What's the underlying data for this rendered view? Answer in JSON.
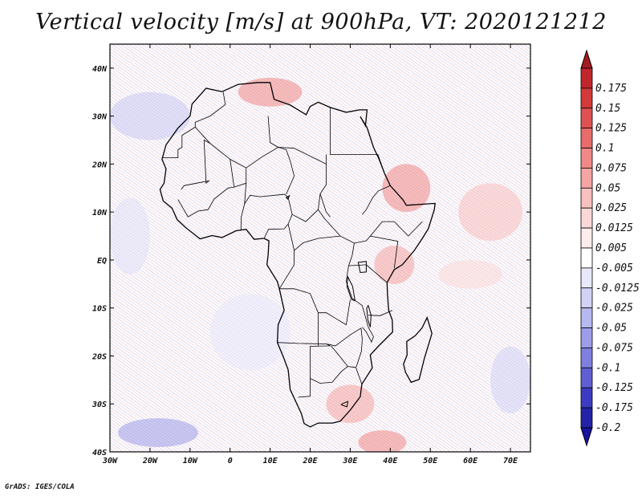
{
  "title": "Vertical velocity [m/s] at 900hPa, VT: 2020121212",
  "credit": "GrADS: IGES/COLA",
  "map": {
    "lon_range": [
      -30,
      75
    ],
    "lat_range": [
      -40,
      45
    ],
    "lon_ticks": [
      {
        "lon": -30,
        "label": "30W"
      },
      {
        "lon": -20,
        "label": "20W"
      },
      {
        "lon": -10,
        "label": "10W"
      },
      {
        "lon": 0,
        "label": "0"
      },
      {
        "lon": 10,
        "label": "10E"
      },
      {
        "lon": 20,
        "label": "20E"
      },
      {
        "lon": 30,
        "label": "30E"
      },
      {
        "lon": 40,
        "label": "40E"
      },
      {
        "lon": 50,
        "label": "50E"
      },
      {
        "lon": 60,
        "label": "60E"
      },
      {
        "lon": 70,
        "label": "70E"
      }
    ],
    "lat_ticks": [
      {
        "lat": 40,
        "label": "40N"
      },
      {
        "lat": 30,
        "label": "30N"
      },
      {
        "lat": 20,
        "label": "20N"
      },
      {
        "lat": 10,
        "label": "10N"
      },
      {
        "lat": 0,
        "label": "EQ"
      },
      {
        "lat": -10,
        "label": "10S"
      },
      {
        "lat": -20,
        "label": "20S"
      },
      {
        "lat": -30,
        "label": "30S"
      },
      {
        "lat": -40,
        "label": "40S"
      }
    ]
  },
  "colorbar": {
    "levels": [
      {
        "label": "0.175",
        "color": "#c0262b"
      },
      {
        "label": "0.15",
        "color": "#d43a3a"
      },
      {
        "label": "0.125",
        "color": "#e05252"
      },
      {
        "label": "0.1",
        "color": "#e86c6a"
      },
      {
        "label": "0.075",
        "color": "#ef8886"
      },
      {
        "label": "0.05",
        "color": "#f4a4a2"
      },
      {
        "label": "0.025",
        "color": "#f8c0be"
      },
      {
        "label": "0.0125",
        "color": "#fbd8d7"
      },
      {
        "label": "0.005",
        "color": "#fdeceb"
      },
      {
        "label": "-0.005",
        "color": "#ffffff"
      },
      {
        "label": "-0.0125",
        "color": "#e8e8fb"
      },
      {
        "label": "-0.025",
        "color": "#d2d2f6"
      },
      {
        "label": "-0.05",
        "color": "#b8b8f0"
      },
      {
        "label": "-0.075",
        "color": "#9c9ce8"
      },
      {
        "label": "-0.1",
        "color": "#7f7fdf"
      },
      {
        "label": "-0.125",
        "color": "#5f5fd3"
      },
      {
        "label": "-0.175",
        "color": "#3c3cc2"
      },
      {
        "label": "-0.2",
        "color": "#2323a8"
      }
    ],
    "top_arrow_color": "#a51a22",
    "bottom_arrow_color": "#1a14a0"
  },
  "coastline": [
    [
      -17,
      21
    ],
    [
      -16,
      24
    ],
    [
      -13,
      27.5
    ],
    [
      -10,
      30
    ],
    [
      -9.5,
      32.5
    ],
    [
      -6,
      35.8
    ],
    [
      -2,
      35.1
    ],
    [
      2,
      36.6
    ],
    [
      7,
      37
    ],
    [
      10,
      37
    ],
    [
      11,
      33.5
    ],
    [
      15,
      32.3
    ],
    [
      19,
      30.3
    ],
    [
      20,
      32
    ],
    [
      22,
      32.9
    ],
    [
      25,
      31.8
    ],
    [
      29,
      30.8
    ],
    [
      32.3,
      31.3
    ],
    [
      34.2,
      31.3
    ],
    [
      33.8,
      28
    ],
    [
      32.5,
      29.9
    ],
    [
      34.2,
      27.6
    ],
    [
      35.8,
      23.5
    ],
    [
      37.2,
      21
    ],
    [
      38.6,
      18
    ],
    [
      40,
      15.5
    ],
    [
      43.2,
      12.5
    ],
    [
      44,
      11.4
    ],
    [
      51.2,
      11.8
    ],
    [
      51,
      10.5
    ],
    [
      49.5,
      6.5
    ],
    [
      48,
      4.5
    ],
    [
      46,
      2
    ],
    [
      43,
      -1
    ],
    [
      41,
      -2
    ],
    [
      39.2,
      -4.7
    ],
    [
      39.3,
      -7
    ],
    [
      39.6,
      -10.5
    ],
    [
      40.5,
      -12.5
    ],
    [
      40.6,
      -15
    ],
    [
      37,
      -18
    ],
    [
      35,
      -19.8
    ],
    [
      35.5,
      -22.5
    ],
    [
      32.9,
      -25.9
    ],
    [
      32.5,
      -28.5
    ],
    [
      30,
      -31.3
    ],
    [
      27.5,
      -33.6
    ],
    [
      25.6,
      -34
    ],
    [
      22,
      -34
    ],
    [
      20,
      -34.8
    ],
    [
      18.5,
      -34.1
    ],
    [
      17.8,
      -32
    ],
    [
      15,
      -27
    ],
    [
      14.5,
      -22.9
    ],
    [
      13.2,
      -20
    ],
    [
      11.8,
      -17.2
    ],
    [
      12,
      -13.5
    ],
    [
      13.5,
      -10.5
    ],
    [
      12.3,
      -6
    ],
    [
      11.8,
      -4.5
    ],
    [
      9.2,
      -1
    ],
    [
      9.5,
      1
    ],
    [
      9.7,
      4
    ],
    [
      8.5,
      4.5
    ],
    [
      6,
      4.3
    ],
    [
      4,
      6.4
    ],
    [
      1.5,
      6.1
    ],
    [
      -2,
      4.7
    ],
    [
      -4.5,
      5.1
    ],
    [
      -7.5,
      4.4
    ],
    [
      -11,
      6.7
    ],
    [
      -13.2,
      8.4
    ],
    [
      -14.5,
      10.8
    ],
    [
      -16.7,
      12.3
    ],
    [
      -17.5,
      14.7
    ],
    [
      -16.5,
      16
    ],
    [
      -16,
      19
    ],
    [
      -17,
      21
    ]
  ],
  "madagascar": [
    [
      49.2,
      -12
    ],
    [
      50.4,
      -15.3
    ],
    [
      49.8,
      -17
    ],
    [
      48.5,
      -20.5
    ],
    [
      47.2,
      -24.9
    ],
    [
      45.2,
      -25.5
    ],
    [
      43.8,
      -23.4
    ],
    [
      43.3,
      -21.7
    ],
    [
      44.2,
      -19.8
    ],
    [
      44.1,
      -17
    ],
    [
      46.2,
      -15.8
    ],
    [
      47.9,
      -14.2
    ],
    [
      49.2,
      -12
    ]
  ],
  "borders": [
    [
      [
        -8.7,
        27.7
      ],
      [
        -5,
        24.3
      ],
      [
        0,
        21
      ],
      [
        4,
        19.2
      ]
    ],
    [
      [
        4,
        19.2
      ],
      [
        8,
        21.5
      ],
      [
        12,
        23.5
      ],
      [
        14,
        23
      ]
    ],
    [
      [
        9.5,
        30
      ],
      [
        10,
        24.5
      ],
      [
        12,
        23.5
      ]
    ],
    [
      [
        12,
        23.5
      ],
      [
        16,
        23.3
      ],
      [
        24,
        20
      ],
      [
        24,
        15.7
      ],
      [
        22.5,
        13.8
      ],
      [
        22,
        10.5
      ],
      [
        23.5,
        8.7
      ],
      [
        27.5,
        5
      ],
      [
        31,
        3.5
      ],
      [
        34,
        4
      ],
      [
        35,
        5
      ]
    ],
    [
      [
        25,
        31.8
      ],
      [
        25,
        22
      ],
      [
        36.9,
        22
      ]
    ],
    [
      [
        24,
        20
      ],
      [
        24,
        22
      ]
    ],
    [
      [
        -17,
        21.3
      ],
      [
        -13,
        21.3
      ],
      [
        -13,
        23
      ],
      [
        -12,
        23.5
      ],
      [
        -12,
        26
      ],
      [
        -8.7,
        27.7
      ],
      [
        -8.7,
        28.7
      ],
      [
        -5,
        30
      ],
      [
        -1.2,
        32.4
      ],
      [
        -1.7,
        35
      ]
    ],
    [
      [
        -5,
        24.3
      ],
      [
        -6.5,
        25
      ],
      [
        -6,
        16
      ],
      [
        -5.3,
        16.5
      ],
      [
        -11.5,
        15.5
      ],
      [
        -12.2,
        14.7
      ]
    ],
    [
      [
        0,
        21
      ],
      [
        1,
        15.2
      ],
      [
        -0.5,
        15
      ],
      [
        -4,
        12.7
      ],
      [
        -5.5,
        10.5
      ],
      [
        -8,
        10.2
      ],
      [
        -10.5,
        9
      ],
      [
        -13,
        12.6
      ]
    ],
    [
      [
        4,
        19.2
      ],
      [
        4,
        16
      ],
      [
        1,
        15.2
      ]
    ],
    [
      [
        4,
        16
      ],
      [
        3.6,
        11.7
      ],
      [
        2.8,
        9
      ],
      [
        2.7,
        6.3
      ]
    ],
    [
      [
        3.6,
        11.7
      ],
      [
        5,
        13.5
      ],
      [
        7.5,
        13.2
      ],
      [
        13.6,
        13.7
      ],
      [
        14.5,
        13
      ],
      [
        15.5,
        9.5
      ],
      [
        14.5,
        7.5
      ],
      [
        13.5,
        6.5
      ],
      [
        9.6,
        6.4
      ],
      [
        8.5,
        4.5
      ]
    ],
    [
      [
        14,
        23
      ],
      [
        15,
        20.7
      ],
      [
        16,
        17.5
      ],
      [
        14,
        13.7
      ]
    ],
    [
      [
        15.5,
        9.5
      ],
      [
        18.9,
        8
      ],
      [
        22,
        10.5
      ]
    ],
    [
      [
        14.5,
        7.5
      ],
      [
        16,
        2
      ],
      [
        18.3,
        3.6
      ],
      [
        22,
        4.5
      ],
      [
        27.5,
        5
      ]
    ],
    [
      [
        22.5,
        13.8
      ],
      [
        24,
        10
      ],
      [
        25,
        9
      ]
    ],
    [
      [
        36.9,
        22
      ],
      [
        38.6,
        18
      ]
    ],
    [
      [
        33,
        9.5
      ],
      [
        34,
        10.5
      ],
      [
        35.6,
        13
      ],
      [
        37,
        14.4
      ],
      [
        40,
        15.5
      ]
    ],
    [
      [
        35,
        5
      ],
      [
        41.9,
        3.9
      ],
      [
        41,
        -1.7
      ]
    ],
    [
      [
        35,
        5
      ],
      [
        38,
        8
      ],
      [
        41,
        8
      ],
      [
        44.5,
        5
      ],
      [
        48,
        8
      ]
    ],
    [
      [
        31,
        3.5
      ],
      [
        30.5,
        1
      ],
      [
        29.6,
        -1.2
      ],
      [
        29,
        -4.5
      ],
      [
        30.5,
        -8
      ],
      [
        33,
        -9.5
      ],
      [
        34.5,
        -14
      ]
    ],
    [
      [
        34,
        -1
      ],
      [
        37.5,
        -3.5
      ],
      [
        39.2,
        -4.7
      ]
    ],
    [
      [
        29.6,
        -1.2
      ],
      [
        34,
        -1
      ]
    ],
    [
      [
        16,
        2
      ],
      [
        16,
        -1
      ],
      [
        12.3,
        -6
      ]
    ],
    [
      [
        12.3,
        -6
      ],
      [
        16,
        -6
      ],
      [
        20,
        -7
      ],
      [
        22,
        -11
      ],
      [
        24,
        -11
      ],
      [
        26,
        -12
      ],
      [
        29,
        -13.5
      ],
      [
        30,
        -8.3
      ]
    ],
    [
      [
        11.8,
        -17.2
      ],
      [
        17,
        -17.4
      ],
      [
        24,
        -17.5
      ],
      [
        25,
        -17.9
      ],
      [
        20,
        -18
      ],
      [
        20,
        -22
      ],
      [
        20,
        -24.7
      ],
      [
        20,
        -28.4
      ],
      [
        17,
        -28.6
      ]
    ],
    [
      [
        22,
        -11
      ],
      [
        22,
        -18
      ]
    ],
    [
      [
        24,
        -17.5
      ],
      [
        26.3,
        -17.9
      ],
      [
        30,
        -15.6
      ],
      [
        32.7,
        -14.2
      ]
    ],
    [
      [
        25.2,
        -17.9
      ],
      [
        26.8,
        -19.5
      ],
      [
        29.4,
        -22.2
      ],
      [
        31.4,
        -22.4
      ],
      [
        32.9,
        -25.9
      ]
    ],
    [
      [
        32.7,
        -14.2
      ],
      [
        33,
        -16.5
      ],
      [
        32.8,
        -19
      ],
      [
        31.5,
        -22.3
      ]
    ],
    [
      [
        20,
        -24.7
      ],
      [
        22.5,
        -25.7
      ],
      [
        25.5,
        -25.5
      ],
      [
        27.7,
        -23.3
      ],
      [
        29.4,
        -22.2
      ]
    ],
    [
      [
        34.5,
        -14
      ],
      [
        35.8,
        -16
      ],
      [
        35.3,
        -17.1
      ],
      [
        34,
        -15
      ],
      [
        33,
        -14
      ]
    ],
    [
      [
        40.5,
        -10.5
      ],
      [
        37.5,
        -11.6
      ],
      [
        34.5,
        -11.5
      ]
    ]
  ],
  "lakes": [
    [
      [
        32,
        -0.5
      ],
      [
        34,
        -0.3
      ],
      [
        34,
        -2.5
      ],
      [
        32.5,
        -2.6
      ],
      [
        32,
        -0.5
      ]
    ],
    [
      [
        29.4,
        -3.5
      ],
      [
        30.6,
        -5.5
      ],
      [
        31.2,
        -8.5
      ],
      [
        30.3,
        -8.2
      ],
      [
        29.2,
        -5.5
      ],
      [
        29.4,
        -3.5
      ]
    ],
    [
      [
        34.5,
        -9.5
      ],
      [
        35.2,
        -11.5
      ],
      [
        35,
        -14
      ],
      [
        34.4,
        -12.5
      ],
      [
        34.1,
        -10
      ],
      [
        34.5,
        -9.5
      ]
    ],
    [
      [
        14,
        13
      ],
      [
        14.8,
        13.4
      ],
      [
        14.4,
        12.7
      ],
      [
        14,
        13
      ]
    ],
    [
      [
        28,
        -30
      ],
      [
        29.4,
        -29.5
      ],
      [
        29.2,
        -30.6
      ],
      [
        27.8,
        -30.2
      ],
      [
        28,
        -30
      ]
    ]
  ],
  "field_patches": [
    {
      "lon": 44,
      "lat": 15,
      "rx": 6,
      "ry": 5,
      "color": "#ef8886"
    },
    {
      "lon": 41,
      "lat": -1,
      "rx": 5,
      "ry": 4,
      "color": "#f4a4a2"
    },
    {
      "lon": -20,
      "lat": 30,
      "rx": 10,
      "ry": 5,
      "color": "#c8c8f4"
    },
    {
      "lon": 30,
      "lat": -30,
      "rx": 6,
      "ry": 4,
      "color": "#f4a4a2"
    },
    {
      "lon": -18,
      "lat": -36,
      "rx": 10,
      "ry": 3,
      "color": "#9c9ce8"
    },
    {
      "lon": 38,
      "lat": -38,
      "rx": 6,
      "ry": 2.5,
      "color": "#ef8886"
    },
    {
      "lon": 60,
      "lat": -3,
      "rx": 8,
      "ry": 3,
      "color": "#fbd8d7"
    },
    {
      "lon": 65,
      "lat": 10,
      "rx": 8,
      "ry": 6,
      "color": "#f8c0be"
    },
    {
      "lon": 10,
      "lat": 35,
      "rx": 8,
      "ry": 3,
      "color": "#ef8886"
    },
    {
      "lon": 5,
      "lat": -15,
      "rx": 10,
      "ry": 8,
      "color": "#e8e8fb"
    },
    {
      "lon": 70,
      "lat": -25,
      "rx": 5,
      "ry": 7,
      "color": "#d2d2f6"
    },
    {
      "lon": -25,
      "lat": 5,
      "rx": 5,
      "ry": 8,
      "color": "#e0e0f8"
    }
  ]
}
